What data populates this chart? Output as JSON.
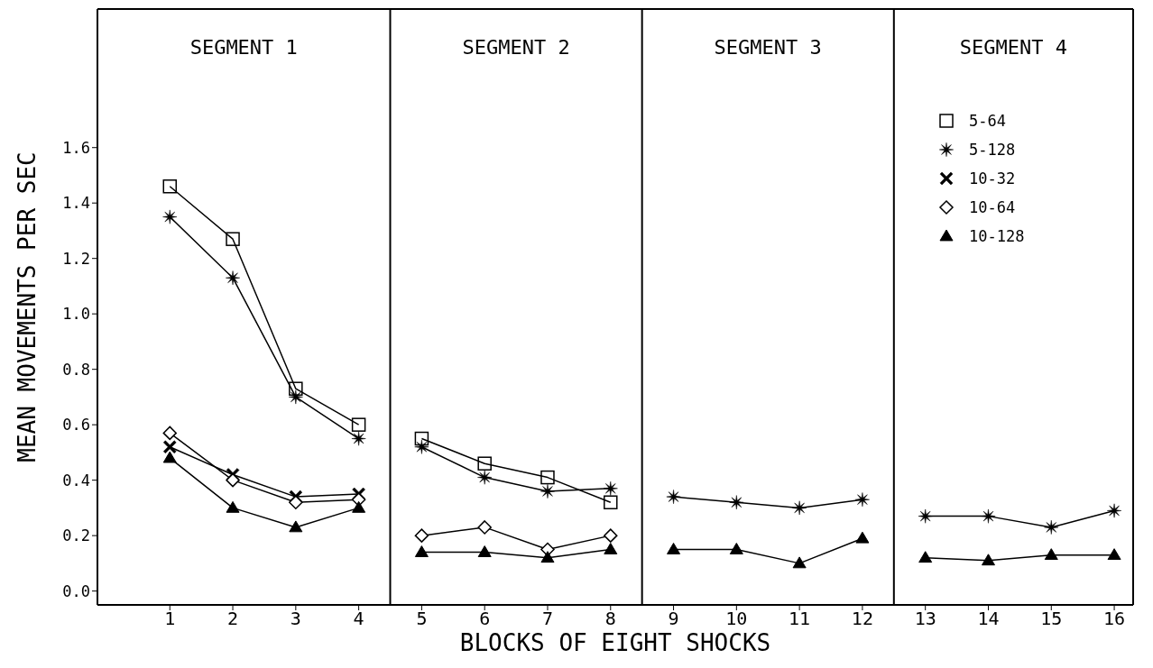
{
  "chart_data": {
    "type": "line",
    "xlabel": "BLOCKS OF EIGHT SHOCKS",
    "ylabel": "MEAN MOVEMENTS PER SEC",
    "x": [
      1,
      2,
      3,
      4,
      5,
      6,
      7,
      8,
      9,
      10,
      11,
      12,
      13,
      14,
      15,
      16
    ],
    "series": [
      {
        "name": "5-64",
        "color": "#000000",
        "marker": "square",
        "values": [
          1.46,
          1.27,
          0.73,
          0.6,
          0.55,
          0.46,
          0.41,
          0.32,
          null,
          null,
          null,
          null,
          null,
          null,
          null,
          null
        ]
      },
      {
        "name": "5-128",
        "color": "#000000",
        "marker": "star",
        "values": [
          1.35,
          1.13,
          0.7,
          0.55,
          0.52,
          0.41,
          0.36,
          0.37,
          0.34,
          0.32,
          0.3,
          0.33,
          0.27,
          0.27,
          0.23,
          0.29
        ]
      },
      {
        "name": "10-32",
        "color": "#000000",
        "marker": "cross",
        "values": [
          0.52,
          0.42,
          0.34,
          0.35,
          null,
          null,
          null,
          null,
          null,
          null,
          null,
          null,
          null,
          null,
          null,
          null
        ]
      },
      {
        "name": "10-64",
        "color": "#000000",
        "marker": "diamond",
        "values": [
          0.57,
          0.4,
          0.32,
          0.33,
          0.2,
          0.23,
          0.15,
          0.2,
          null,
          null,
          null,
          null,
          null,
          null,
          null,
          null
        ]
      },
      {
        "name": "10-128",
        "color": "#000000",
        "marker": "triangle",
        "values": [
          0.48,
          0.3,
          0.23,
          0.3,
          0.14,
          0.14,
          0.12,
          0.15,
          0.15,
          0.15,
          0.1,
          0.19,
          0.12,
          0.11,
          0.13,
          0.13
        ]
      }
    ],
    "xlim": [
      -0.15,
      16.3
    ],
    "xticks": [
      1,
      2,
      3,
      4,
      5,
      6,
      7,
      8,
      9,
      10,
      11,
      12,
      13,
      14,
      15,
      16
    ],
    "ylim": [
      -0.05,
      2.1
    ],
    "yticks": [
      {
        "value": 0,
        "label": "0.0"
      },
      {
        "value": 0.2,
        "label": "0.2"
      },
      {
        "value": 0.4,
        "label": "0.4"
      },
      {
        "value": 0.6,
        "label": "0.6"
      },
      {
        "value": 0.8,
        "label": "0.8"
      },
      {
        "value": 1.0,
        "label": "1.0"
      },
      {
        "value": 1.2,
        "label": "1.2"
      },
      {
        "value": 1.4,
        "label": "1.4"
      },
      {
        "value": 1.6,
        "label": "1.6"
      }
    ],
    "ref_lines": [
      {
        "axis": "x",
        "value": 4.5,
        "color": "#000000"
      },
      {
        "axis": "x",
        "value": 8.5,
        "color": "#000000"
      },
      {
        "axis": "x",
        "value": 12.5,
        "color": "#000000"
      }
    ],
    "annotations": [
      "SEGMENT 1",
      "SEGMENT 2",
      "SEGMENT 3",
      "SEGMENT 4"
    ],
    "grid": false,
    "legend": "top right",
    "line_style": "solid"
  }
}
